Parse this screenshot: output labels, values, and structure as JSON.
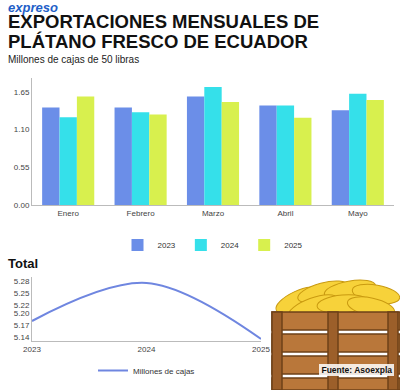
{
  "header": {
    "logo": "expreso",
    "title": "EXPORTACIONES MENSUALES DE\nPLÁTANO FRESCO DE ECUADOR",
    "subtitle": "Millones de cajas de 50 libras"
  },
  "source": "Fuente: Asoexpla",
  "chart_data": [
    {
      "type": "bar",
      "categories": [
        "Enero",
        "Febrero",
        "Marzo",
        "Abril",
        "Mayo"
      ],
      "series": [
        {
          "name": "2023",
          "color": "#6b8ee8",
          "values": [
            1.42,
            1.42,
            1.58,
            1.45,
            1.38
          ]
        },
        {
          "name": "2024",
          "color": "#35e0ea",
          "values": [
            1.28,
            1.35,
            1.72,
            1.45,
            1.62
          ]
        },
        {
          "name": "2025",
          "color": "#d8f04e",
          "values": [
            1.58,
            1.32,
            1.5,
            1.27,
            1.53
          ]
        }
      ],
      "ylim": [
        0,
        1.85
      ],
      "yticks": [
        {
          "value": 0,
          "label": "0.00"
        },
        {
          "value": 0.55,
          "label": "0.55"
        },
        {
          "value": 1.1,
          "label": "1.10"
        },
        {
          "value": 1.65,
          "label": "1.65"
        }
      ],
      "grid": false,
      "legend": "bottom"
    },
    {
      "type": "line",
      "title": "Total",
      "x": [
        2023,
        2024,
        2025
      ],
      "series": [
        {
          "name": "Millones de cajas",
          "color": "#6f86e0",
          "values": [
            5.18,
            5.275,
            5.135
          ],
          "line_style": "smooth"
        }
      ],
      "xlim": [
        2023,
        2025
      ],
      "xticks": [
        2023,
        2024,
        2025
      ],
      "ylim": [
        5.13,
        5.29
      ],
      "yticks": [
        5.14,
        5.17,
        {
          "value": 5.2,
          "label": "5.20"
        },
        5.22,
        5.25,
        5.28
      ],
      "grid": false,
      "legend": "bottom"
    }
  ]
}
